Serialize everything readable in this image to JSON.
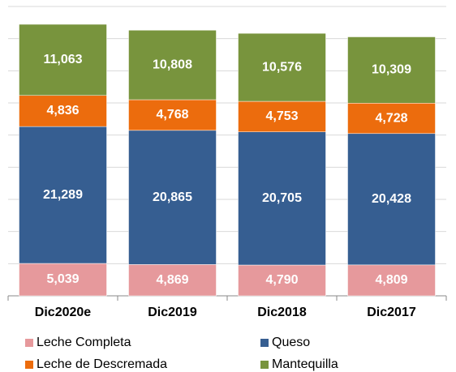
{
  "chart_data": {
    "type": "stacked_bar",
    "categories": [
      "Dic2020e",
      "Dic2019",
      "Dic2018",
      "Dic2017"
    ],
    "series": [
      {
        "name": "Leche Completa",
        "color": "#e6999c",
        "values": [
          5039,
          4869,
          4790,
          4809
        ],
        "value_labels": [
          "5,039",
          "4,869",
          "4,790",
          "4,809"
        ]
      },
      {
        "name": "Queso",
        "color": "#365e91",
        "values": [
          21289,
          20865,
          20705,
          20428
        ],
        "value_labels": [
          "21,289",
          "20,865",
          "20,705",
          "20,428"
        ]
      },
      {
        "name": "Leche de Descremada",
        "color": "#ec6c0d",
        "values": [
          4836,
          4768,
          4753,
          4728
        ],
        "value_labels": [
          "4,836",
          "4,768",
          "4,753",
          "4,728"
        ]
      },
      {
        "name": "Mantequilla",
        "color": "#78943d",
        "values": [
          11063,
          10808,
          10576,
          10309
        ],
        "value_labels": [
          "11,063",
          "10,808",
          "10,576",
          "10,309"
        ]
      }
    ],
    "ylim": [
      0,
      45000
    ],
    "yticks": [
      0,
      5000,
      10000,
      15000,
      20000,
      25000,
      30000,
      35000,
      40000,
      45000
    ],
    "grid": true
  }
}
